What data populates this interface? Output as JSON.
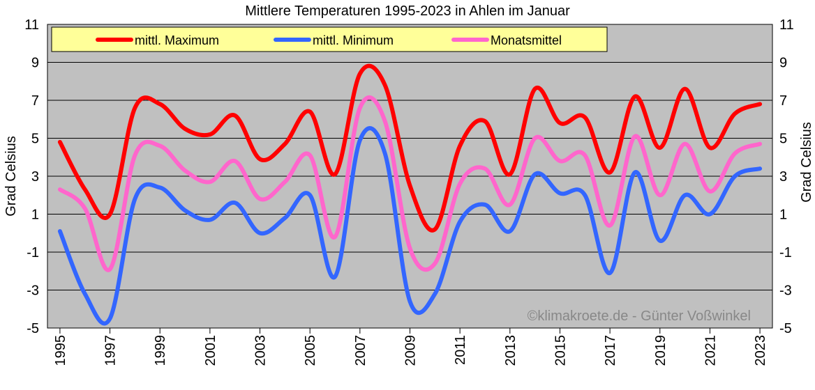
{
  "chart_data": {
    "type": "line",
    "title": "Mittlere Temperaturen 1995-2023 in Ahlen im Januar",
    "y_label": "Grad Celsius",
    "annotation": "©klimakroete.de - Günter Voßwinkel",
    "x": [
      1995,
      1996,
      1997,
      1998,
      1999,
      2000,
      2001,
      2002,
      2003,
      2004,
      2005,
      2006,
      2007,
      2008,
      2009,
      2010,
      2011,
      2012,
      2013,
      2014,
      2015,
      2016,
      2017,
      2018,
      2019,
      2020,
      2021,
      2022,
      2023
    ],
    "xlim": [
      1994.5,
      2023.5
    ],
    "xticks": [
      1995,
      1997,
      1999,
      2001,
      2003,
      2005,
      2007,
      2009,
      2011,
      2013,
      2015,
      2017,
      2019,
      2021,
      2023
    ],
    "ylim": [
      -5,
      11
    ],
    "yticks": [
      -5,
      -3,
      -1,
      1,
      3,
      5,
      7,
      9,
      11
    ],
    "grid": true,
    "series": [
      {
        "name": "mittl. Maximum",
        "color": "#ff0000",
        "values": [
          4.8,
          2.3,
          1.0,
          6.6,
          6.8,
          5.5,
          5.2,
          6.2,
          3.9,
          4.7,
          6.4,
          3.1,
          8.4,
          7.8,
          2.5,
          0.2,
          4.6,
          5.9,
          3.1,
          7.6,
          5.8,
          6.1,
          3.2,
          7.2,
          4.5,
          7.6,
          4.5,
          6.3,
          6.8
        ]
      },
      {
        "name": "mittl. Minimum",
        "color": "#3366ff",
        "values": [
          0.1,
          -3.2,
          -4.5,
          1.8,
          2.4,
          1.2,
          0.7,
          1.6,
          0.0,
          0.8,
          2.0,
          -2.3,
          4.9,
          4.2,
          -3.6,
          -3.2,
          0.6,
          1.5,
          0.1,
          3.1,
          2.1,
          2.0,
          -2.1,
          3.2,
          -0.4,
          2.0,
          1.0,
          3.0,
          3.4
        ]
      },
      {
        "name": "Monatsmittel",
        "color": "#ff66cc",
        "values": [
          2.3,
          1.3,
          -1.9,
          4.1,
          4.6,
          3.3,
          2.7,
          3.8,
          1.8,
          2.7,
          4.1,
          -0.2,
          6.6,
          5.9,
          -0.8,
          -1.6,
          2.6,
          3.4,
          1.5,
          5.0,
          3.8,
          4.1,
          0.4,
          5.1,
          2.0,
          4.7,
          2.2,
          4.2,
          4.7
        ]
      }
    ]
  }
}
